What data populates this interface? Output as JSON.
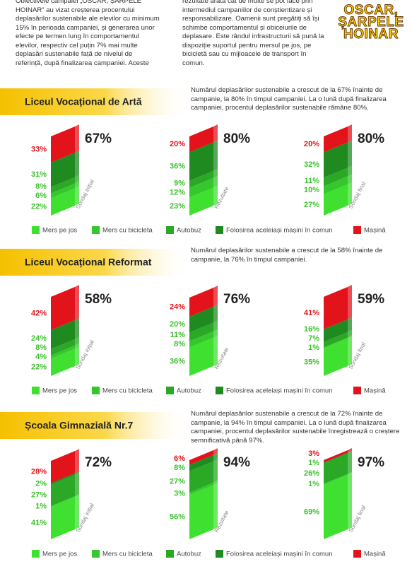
{
  "intro": {
    "column_1": "Obiectivele campaiei „OSCAR, ȘARPELE HOINAR” au vizat creșterea procentului deplasărilor sustenabile ale elevilor cu minimum 15% în perioada campaniei, și generarea unor efecte pe termen lung în comportamentul elevilor, respectiv cel puțin 7% mai multe deplasări sustenabile față de nivelul de referință, după finalizarea campaniei. Aceste",
    "column_2": "rezultate arată cât de multe se pot face prin intermediul campaniilor de conștientizare și responsabilizare. Oamenii sunt pregătiți să își schimbe comportamentul și obiceiurile de deplasare. Este rândul infrastructurii să pună la dispoziție suportul pentru mersul pe jos, pe bicicletă sau cu mijloacele de transport în comun."
  },
  "logo": {
    "lines": [
      "OSCAR,",
      "ȘARPELE",
      "HOINAR"
    ]
  },
  "legend": {
    "items": [
      {
        "label": "Mers pe jos",
        "color": "#3fe030"
      },
      {
        "label": "Mers cu bicicleta",
        "color": "#34c82c"
      },
      {
        "label": "Autobuz",
        "color": "#2aa826"
      },
      {
        "label": "Folosirea aceleiași mașini în comun",
        "color": "#1e8a20"
      },
      {
        "label": "Mașină",
        "color": "#e3131b"
      }
    ]
  },
  "sections": [
    {
      "title": "Liceul Vocațional de Artă",
      "description": "Numărul deplasărilor sustenabile a crescut de la 67% înainte de campanie, la 80% în timpul campaniei.  La o lună după finalizarea campaniei, procentul deplasărilor sustenabile rămâne 80%.",
      "charts": [
        {
          "label": "Sondaj inițial",
          "values": [
            22,
            6,
            8,
            31,
            33
          ],
          "value_labels": [
            "22%",
            "6%",
            "8%",
            "31%",
            "33%"
          ],
          "total": "67%"
        },
        {
          "label": "Rezultate",
          "values": [
            23,
            12,
            9,
            36,
            20
          ],
          "value_labels": [
            "23%",
            "12%",
            "9%",
            "36%",
            "20%"
          ],
          "total": "80%"
        },
        {
          "label": "Sondaj final",
          "values": [
            27,
            10,
            11,
            32,
            20
          ],
          "value_labels": [
            "27%",
            "10%",
            "11%",
            "32%",
            "20%"
          ],
          "total": "80%"
        }
      ]
    },
    {
      "title": "Liceul Vocațional Reformat",
      "description": "Numărul deplasărilor sustenabile a crescut de la 58% înainte de campanie, la 76% în timpul campaniei.",
      "charts": [
        {
          "label": "Sondaj inițial",
          "values": [
            22,
            4,
            8,
            24,
            42
          ],
          "value_labels": [
            "22%",
            "4%",
            "8%",
            "24%",
            "42%"
          ],
          "total": "58%"
        },
        {
          "label": "Rezultate",
          "values": [
            36,
            8,
            11,
            20,
            24
          ],
          "value_labels": [
            "36%",
            "8%",
            "11%",
            "20%",
            "24%"
          ],
          "total": "76%"
        },
        {
          "label": "Sondaj final",
          "values": [
            35,
            1,
            7,
            16,
            41
          ],
          "value_labels": [
            "35%",
            "1%",
            "7%",
            "16%",
            "41%"
          ],
          "total": "59%"
        }
      ]
    },
    {
      "title": "Școala Gimnazială Nr.7",
      "description": "Numărul deplasărilor sustenabile a crescut de la 72% înainte de campanie, la 94% în timpul campaniei.  La o lună după finalizarea campaniei, procentul deplasărilor sustenabile înregistrează o creștere semnificativă până 97%.",
      "charts": [
        {
          "label": "Sondaj inițial",
          "values": [
            41,
            1,
            27,
            2,
            28
          ],
          "value_labels": [
            "41%",
            "1%",
            "27%",
            "2%",
            "28%"
          ],
          "total": "72%"
        },
        {
          "label": "Rezultate",
          "values": [
            56,
            3,
            27,
            8,
            6
          ],
          "value_labels": [
            "56%",
            "3%",
            "27%",
            "8%",
            "6%"
          ],
          "total": "94%"
        },
        {
          "label": "Sondaj final",
          "values": [
            69,
            1,
            26,
            1,
            3
          ],
          "value_labels": [
            "69%",
            "1%",
            "26%",
            "1%",
            "3%"
          ],
          "total": "97%"
        }
      ]
    }
  ]
}
